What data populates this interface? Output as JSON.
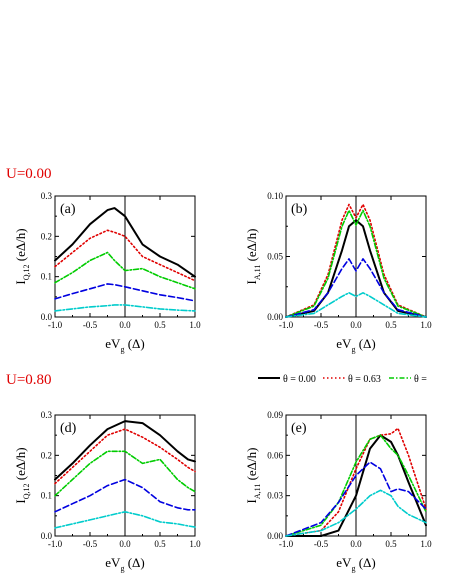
{
  "labels": {
    "u_top": "U=0.00",
    "u_bottom": "U=0.80"
  },
  "legend": [
    {
      "label": "θ = 0.00",
      "color": "#000000",
      "dash": "",
      "width": 2
    },
    {
      "label": "θ = 0.63",
      "color": "#e00000",
      "dash": "1.5,2.5",
      "width": 1.6
    },
    {
      "label": "θ =",
      "color": "#00cc00",
      "dash": "5,2,1.5,2",
      "width": 1.6
    }
  ],
  "styles": [
    {
      "color": "#000000",
      "dash": "",
      "width": 2
    },
    {
      "color": "#e00000",
      "dash": "1.5,2.5",
      "width": 1.6
    },
    {
      "color": "#00cc00",
      "dash": "5,2,1.5,2",
      "width": 1.6
    },
    {
      "color": "#0000e0",
      "dash": "6,3",
      "width": 1.6
    },
    {
      "color": "#00cccc",
      "dash": "6,2,1.5,2",
      "width": 1.6
    }
  ],
  "chart_data": [
    {
      "type": "line",
      "panel": "(a)",
      "ylabel": "I",
      "ylabel_sub": "Q,12",
      "ylabel_unit": " (eΔ/h)",
      "xlabel": "eV",
      "xlabel_sub": "g",
      "xlabel_unit": " (Δ)",
      "xlim": [
        -1,
        1
      ],
      "ylim": [
        0,
        0.3
      ],
      "xticks": [
        "-1.0",
        "-0.5",
        "0.0",
        "0.5",
        "1.0"
      ],
      "yticks": [
        "0.0",
        "0.1",
        "0.2",
        "0.3"
      ],
      "ytick_values": [
        0,
        0.1,
        0.2,
        0.3
      ],
      "x": [
        -1.0,
        -0.75,
        -0.5,
        -0.25,
        -0.15,
        0.0,
        0.25,
        0.5,
        0.75,
        1.0
      ],
      "series": [
        {
          "values": [
            0.14,
            0.18,
            0.23,
            0.265,
            0.27,
            0.25,
            0.18,
            0.15,
            0.13,
            0.1
          ]
        },
        {
          "values": [
            0.125,
            0.16,
            0.195,
            0.215,
            0.21,
            0.2,
            0.15,
            0.13,
            0.11,
            0.09
          ]
        },
        {
          "values": [
            0.085,
            0.11,
            0.14,
            0.16,
            0.14,
            0.115,
            0.12,
            0.1,
            0.085,
            0.07
          ]
        },
        {
          "values": [
            0.045,
            0.058,
            0.07,
            0.082,
            0.08,
            0.075,
            0.065,
            0.055,
            0.048,
            0.04
          ]
        },
        {
          "values": [
            0.015,
            0.02,
            0.025,
            0.028,
            0.03,
            0.03,
            0.025,
            0.02,
            0.017,
            0.015
          ]
        }
      ]
    },
    {
      "type": "line",
      "panel": "(b)",
      "ylabel": "I",
      "ylabel_sub": "A,11",
      "ylabel_unit": " (eΔ/h)",
      "xlabel": "eV",
      "xlabel_sub": "g",
      "xlabel_unit": " (Δ)",
      "xlim": [
        -1,
        1
      ],
      "ylim": [
        0,
        0.1
      ],
      "xticks": [
        "-1.0",
        "-0.5",
        "0.0",
        "0.5",
        "1.0"
      ],
      "yticks": [
        "0.00",
        "0.05",
        "0.10"
      ],
      "ytick_values": [
        0,
        0.05,
        0.1
      ],
      "x": [
        -1.0,
        -0.6,
        -0.4,
        -0.2,
        -0.1,
        0.0,
        0.1,
        0.2,
        0.4,
        0.6,
        1.0
      ],
      "series": [
        {
          "values": [
            0.0,
            0.005,
            0.02,
            0.055,
            0.075,
            0.08,
            0.075,
            0.055,
            0.02,
            0.005,
            0.0
          ]
        },
        {
          "values": [
            0.0,
            0.01,
            0.035,
            0.08,
            0.093,
            0.082,
            0.093,
            0.08,
            0.035,
            0.01,
            0.0
          ]
        },
        {
          "values": [
            0.0,
            0.009,
            0.032,
            0.075,
            0.088,
            0.076,
            0.088,
            0.075,
            0.032,
            0.009,
            0.0
          ]
        },
        {
          "values": [
            0.0,
            0.006,
            0.02,
            0.04,
            0.048,
            0.038,
            0.048,
            0.04,
            0.02,
            0.006,
            0.0
          ]
        },
        {
          "values": [
            0.0,
            0.003,
            0.01,
            0.017,
            0.02,
            0.017,
            0.02,
            0.017,
            0.01,
            0.003,
            0.0
          ]
        }
      ]
    },
    {
      "type": "line",
      "panel": "(d)",
      "ylabel": "I",
      "ylabel_sub": "Q,12",
      "ylabel_unit": " (eΔ/h)",
      "xlabel": "eV",
      "xlabel_sub": "g",
      "xlabel_unit": " (Δ)",
      "xlim": [
        -1,
        1
      ],
      "ylim": [
        0,
        0.3
      ],
      "xticks": [
        "-1.0",
        "-0.5",
        "0.0",
        "0.5",
        "1.0"
      ],
      "yticks": [
        "0.0",
        "0.1",
        "0.2",
        "0.3"
      ],
      "ytick_values": [
        0,
        0.1,
        0.2,
        0.3
      ],
      "x": [
        -1.0,
        -0.75,
        -0.5,
        -0.25,
        0.0,
        0.25,
        0.5,
        0.75,
        0.9,
        1.0
      ],
      "series": [
        {
          "values": [
            0.14,
            0.18,
            0.225,
            0.265,
            0.285,
            0.28,
            0.25,
            0.21,
            0.19,
            0.185
          ]
        },
        {
          "values": [
            0.13,
            0.17,
            0.21,
            0.25,
            0.265,
            0.245,
            0.22,
            0.19,
            0.17,
            0.16
          ]
        },
        {
          "values": [
            0.1,
            0.14,
            0.18,
            0.21,
            0.21,
            0.18,
            0.19,
            0.14,
            0.12,
            0.11
          ]
        },
        {
          "values": [
            0.06,
            0.08,
            0.1,
            0.125,
            0.14,
            0.12,
            0.085,
            0.07,
            0.065,
            0.065
          ]
        },
        {
          "values": [
            0.02,
            0.03,
            0.04,
            0.05,
            0.06,
            0.05,
            0.035,
            0.03,
            0.025,
            0.022
          ]
        }
      ]
    },
    {
      "type": "line",
      "panel": "(e)",
      "ylabel": "I",
      "ylabel_sub": "A,11",
      "ylabel_unit": " (eΔ/h)",
      "xlabel": "eV",
      "xlabel_sub": "g",
      "xlabel_unit": " (Δ)",
      "xlim": [
        -1,
        1
      ],
      "ylim": [
        0,
        0.09
      ],
      "xticks": [
        "-1.0",
        "-0.5",
        "0.0",
        "0.5",
        "1.0"
      ],
      "yticks": [
        "0.00",
        "0.03",
        "0.06",
        "0.09"
      ],
      "ytick_values": [
        0,
        0.03,
        0.06,
        0.09
      ],
      "x": [
        -1.0,
        -0.5,
        -0.25,
        0.0,
        0.2,
        0.35,
        0.5,
        0.6,
        0.75,
        1.0
      ],
      "series": [
        {
          "values": [
            0.0,
            0.0,
            0.004,
            0.03,
            0.065,
            0.075,
            0.07,
            0.06,
            0.04,
            0.008
          ]
        },
        {
          "values": [
            0.0,
            0.004,
            0.018,
            0.05,
            0.072,
            0.075,
            0.076,
            0.08,
            0.06,
            0.02
          ]
        },
        {
          "values": [
            0.0,
            0.008,
            0.025,
            0.055,
            0.072,
            0.075,
            0.065,
            0.06,
            0.045,
            0.018
          ]
        },
        {
          "values": [
            0.0,
            0.01,
            0.025,
            0.045,
            0.055,
            0.05,
            0.033,
            0.035,
            0.033,
            0.02
          ]
        },
        {
          "values": [
            0.0,
            0.004,
            0.01,
            0.02,
            0.03,
            0.034,
            0.03,
            0.022,
            0.016,
            0.01
          ]
        }
      ]
    }
  ]
}
